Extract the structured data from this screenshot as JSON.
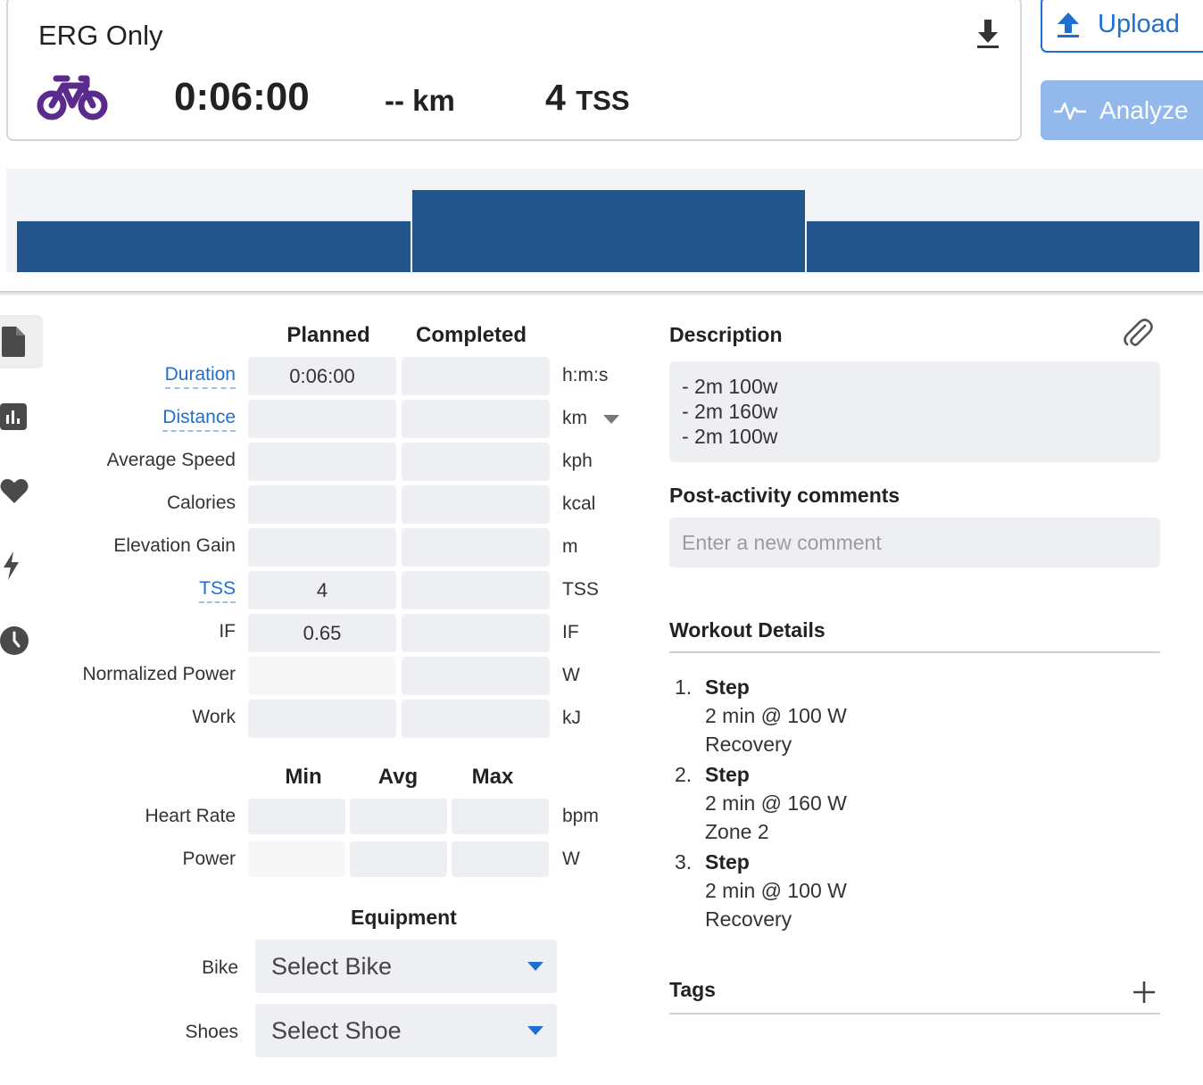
{
  "header": {
    "title": "ERG Only",
    "sport": "bike-icon",
    "duration": "0:06:00",
    "distance": "-- km",
    "tss_value": "4",
    "tss_unit": "TSS",
    "upload_label": "Upload",
    "analyze_label": "Analyze"
  },
  "colors": {
    "accent": "#1f6fd1",
    "sport_purple": "#5a2a8c",
    "chart_bar": "#22558c",
    "analyze_disabled": "#93b8ec"
  },
  "workout_profile": {
    "type": "bar",
    "categories": [
      "Step 1",
      "Step 2",
      "Step 3"
    ],
    "values": [
      100,
      160,
      100
    ],
    "durations_min": [
      2,
      2,
      2
    ],
    "unit": "W"
  },
  "side_tabs": [
    "file-icon",
    "bar-chart-icon",
    "heart-icon",
    "lightning-icon",
    "clock-icon"
  ],
  "summary": {
    "headers": {
      "planned": "Planned",
      "completed": "Completed"
    },
    "rows": [
      {
        "label": "Duration",
        "planned": "0:06:00",
        "completed": "",
        "unit": "h:m:s",
        "link": true
      },
      {
        "label": "Distance",
        "planned": "",
        "completed": "",
        "unit": "km",
        "link": true
      },
      {
        "label": "Average Speed",
        "planned": "",
        "completed": "",
        "unit": "kph",
        "link": false
      },
      {
        "label": "Calories",
        "planned": "",
        "completed": "",
        "unit": "kcal",
        "link": false
      },
      {
        "label": "Elevation Gain",
        "planned": "",
        "completed": "",
        "unit": "m",
        "link": false
      },
      {
        "label": "TSS",
        "planned": "4",
        "completed": "",
        "unit": "TSS",
        "link": true
      },
      {
        "label": "IF",
        "planned": "0.65",
        "completed": "",
        "unit": "IF",
        "link": false
      },
      {
        "label": "Normalized Power",
        "planned": "",
        "completed": "",
        "unit": "W",
        "link": false
      },
      {
        "label": "Work",
        "planned": "",
        "completed": "",
        "unit": "kJ",
        "link": false
      }
    ]
  },
  "ranges": {
    "headers": {
      "min": "Min",
      "avg": "Avg",
      "max": "Max"
    },
    "rows": [
      {
        "label": "Heart Rate",
        "min": "",
        "avg": "",
        "max": "",
        "unit": "bpm"
      },
      {
        "label": "Power",
        "min": "",
        "avg": "",
        "max": "",
        "unit": "W"
      }
    ]
  },
  "equipment": {
    "title": "Equipment",
    "bike_label": "Bike",
    "bike_value": "Select Bike",
    "shoes_label": "Shoes",
    "shoes_value": "Select Shoe"
  },
  "description": {
    "title": "Description",
    "lines": [
      "- 2m 100w",
      "- 2m 160w",
      "- 2m 100w"
    ]
  },
  "comments": {
    "title": "Post-activity comments",
    "placeholder": "Enter a new comment"
  },
  "workout_details": {
    "title": "Workout Details",
    "steps": [
      {
        "num": "1.",
        "name": "Step",
        "detail": "2 min @ 100 W",
        "zone": "Recovery"
      },
      {
        "num": "2.",
        "name": "Step",
        "detail": "2 min @ 160 W",
        "zone": "Zone 2"
      },
      {
        "num": "3.",
        "name": "Step",
        "detail": "2 min @ 100 W",
        "zone": "Recovery"
      }
    ]
  },
  "tags": {
    "title": "Tags"
  }
}
